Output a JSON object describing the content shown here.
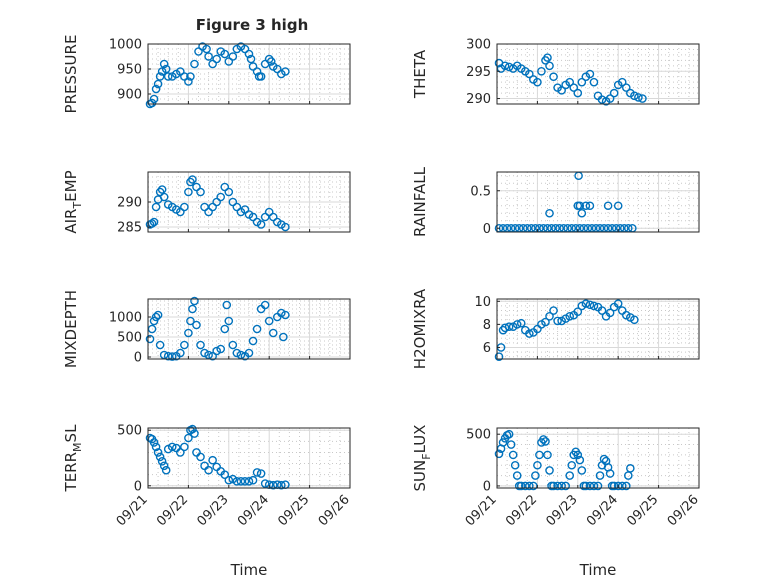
{
  "figure": {
    "title": "Figure 3 high",
    "marker_color": "#0072bd",
    "grid": "on (major and minor)",
    "marker": "open circle",
    "x_tick_labels": [
      "09/21",
      "09/22",
      "09/23",
      "09/24",
      "09/25",
      "09/26"
    ],
    "x_tick_label_rotation_deg": 45,
    "xlabel": "Time"
  },
  "chart_data": [
    {
      "type": "scatter",
      "title": "Figure 3 high",
      "xlabel": "",
      "ylabel": "PRESSURE",
      "xlim": [
        0,
        5
      ],
      "ylim": [
        880,
        1000
      ],
      "yticks": [
        900,
        950,
        1000
      ],
      "points": [
        [
          0.05,
          880
        ],
        [
          0.1,
          882
        ],
        [
          0.15,
          890
        ],
        [
          0.2,
          910
        ],
        [
          0.25,
          920
        ],
        [
          0.3,
          935
        ],
        [
          0.35,
          945
        ],
        [
          0.4,
          960
        ],
        [
          0.45,
          950
        ],
        [
          0.5,
          935
        ],
        [
          0.6,
          935
        ],
        [
          0.7,
          940
        ],
        [
          0.8,
          945
        ],
        [
          0.9,
          935
        ],
        [
          1.0,
          925
        ],
        [
          1.05,
          935
        ],
        [
          1.15,
          960
        ],
        [
          1.25,
          985
        ],
        [
          1.35,
          995
        ],
        [
          1.45,
          990
        ],
        [
          1.5,
          975
        ],
        [
          1.6,
          960
        ],
        [
          1.7,
          970
        ],
        [
          1.8,
          985
        ],
        [
          1.9,
          980
        ],
        [
          2.0,
          965
        ],
        [
          2.1,
          975
        ],
        [
          2.2,
          990
        ],
        [
          2.3,
          995
        ],
        [
          2.4,
          990
        ],
        [
          2.5,
          980
        ],
        [
          2.55,
          970
        ],
        [
          2.6,
          955
        ],
        [
          2.7,
          945
        ],
        [
          2.75,
          935
        ],
        [
          2.8,
          935
        ],
        [
          2.9,
          960
        ],
        [
          3.0,
          970
        ],
        [
          3.05,
          965
        ],
        [
          3.1,
          955
        ],
        [
          3.2,
          950
        ],
        [
          3.3,
          940
        ],
        [
          3.4,
          945
        ]
      ]
    },
    {
      "type": "scatter",
      "title": "",
      "xlabel": "",
      "ylabel": "THETA",
      "xlim": [
        0,
        5
      ],
      "ylim": [
        289,
        300
      ],
      "yticks": [
        290,
        295,
        300
      ],
      "points": [
        [
          0.05,
          296.5
        ],
        [
          0.1,
          295.5
        ],
        [
          0.2,
          296
        ],
        [
          0.3,
          295.8
        ],
        [
          0.4,
          295.5
        ],
        [
          0.5,
          296
        ],
        [
          0.6,
          295.5
        ],
        [
          0.7,
          295
        ],
        [
          0.8,
          294.5
        ],
        [
          0.9,
          293.5
        ],
        [
          1.0,
          293
        ],
        [
          1.1,
          295
        ],
        [
          1.2,
          297
        ],
        [
          1.25,
          297.5
        ],
        [
          1.3,
          296
        ],
        [
          1.4,
          294
        ],
        [
          1.5,
          292
        ],
        [
          1.6,
          291.5
        ],
        [
          1.7,
          292.5
        ],
        [
          1.8,
          293
        ],
        [
          1.9,
          292
        ],
        [
          2.0,
          291
        ],
        [
          2.1,
          293
        ],
        [
          2.2,
          294
        ],
        [
          2.3,
          294.5
        ],
        [
          2.4,
          293
        ],
        [
          2.5,
          290.5
        ],
        [
          2.6,
          289.8
        ],
        [
          2.7,
          289.5
        ],
        [
          2.8,
          290
        ],
        [
          2.9,
          291
        ],
        [
          3.0,
          292.5
        ],
        [
          3.1,
          293
        ],
        [
          3.2,
          292
        ],
        [
          3.3,
          291
        ],
        [
          3.4,
          290.5
        ],
        [
          3.5,
          290.2
        ],
        [
          3.6,
          290
        ]
      ]
    },
    {
      "type": "scatter",
      "title": "",
      "xlabel": "",
      "ylabel": "AIR_TEMP",
      "xlim": [
        0,
        5
      ],
      "ylim": [
        284,
        296
      ],
      "yticks": [
        285,
        290
      ],
      "points": [
        [
          0.05,
          285.5
        ],
        [
          0.1,
          285.7
        ],
        [
          0.15,
          286
        ],
        [
          0.2,
          289
        ],
        [
          0.25,
          290.5
        ],
        [
          0.3,
          292
        ],
        [
          0.35,
          292.5
        ],
        [
          0.4,
          291
        ],
        [
          0.5,
          289.5
        ],
        [
          0.6,
          289
        ],
        [
          0.7,
          288.5
        ],
        [
          0.8,
          288
        ],
        [
          0.9,
          289
        ],
        [
          1.0,
          292
        ],
        [
          1.05,
          294
        ],
        [
          1.1,
          294.5
        ],
        [
          1.2,
          293
        ],
        [
          1.3,
          292
        ],
        [
          1.4,
          289
        ],
        [
          1.5,
          288
        ],
        [
          1.6,
          289
        ],
        [
          1.7,
          290
        ],
        [
          1.8,
          291
        ],
        [
          1.9,
          293
        ],
        [
          2.0,
          292
        ],
        [
          2.1,
          290
        ],
        [
          2.2,
          289
        ],
        [
          2.3,
          288
        ],
        [
          2.4,
          288.5
        ],
        [
          2.5,
          287.5
        ],
        [
          2.6,
          287
        ],
        [
          2.7,
          286
        ],
        [
          2.8,
          285.5
        ],
        [
          2.9,
          287
        ],
        [
          3.0,
          288
        ],
        [
          3.1,
          287
        ],
        [
          3.2,
          286
        ],
        [
          3.3,
          285.5
        ],
        [
          3.4,
          285
        ]
      ]
    },
    {
      "type": "scatter",
      "title": "",
      "xlabel": "",
      "ylabel": "RAINFALL",
      "xlim": [
        0,
        5
      ],
      "ylim": [
        -0.05,
        0.75
      ],
      "yticks": [
        0,
        0.5
      ],
      "points": [
        [
          0.05,
          0
        ],
        [
          0.15,
          0
        ],
        [
          0.25,
          0
        ],
        [
          0.35,
          0
        ],
        [
          0.45,
          0
        ],
        [
          0.55,
          0
        ],
        [
          0.65,
          0
        ],
        [
          0.75,
          0
        ],
        [
          0.85,
          0
        ],
        [
          0.95,
          0
        ],
        [
          1.05,
          0
        ],
        [
          1.15,
          0
        ],
        [
          1.25,
          0
        ],
        [
          1.35,
          0
        ],
        [
          1.45,
          0
        ],
        [
          1.55,
          0
        ],
        [
          1.65,
          0
        ],
        [
          1.75,
          0
        ],
        [
          1.85,
          0
        ],
        [
          1.95,
          0
        ],
        [
          2.05,
          0
        ],
        [
          2.15,
          0
        ],
        [
          2.25,
          0
        ],
        [
          2.35,
          0
        ],
        [
          2.45,
          0
        ],
        [
          2.55,
          0
        ],
        [
          2.65,
          0
        ],
        [
          2.75,
          0
        ],
        [
          2.85,
          0
        ],
        [
          2.95,
          0
        ],
        [
          3.05,
          0
        ],
        [
          3.15,
          0
        ],
        [
          3.25,
          0
        ],
        [
          3.35,
          0
        ],
        [
          1.3,
          0.2
        ],
        [
          2.0,
          0.3
        ],
        [
          2.02,
          0.7
        ],
        [
          2.05,
          0.3
        ],
        [
          2.1,
          0.2
        ],
        [
          2.2,
          0.3
        ],
        [
          2.3,
          0.3
        ],
        [
          2.75,
          0.3
        ],
        [
          3.0,
          0.3
        ]
      ]
    },
    {
      "type": "scatter",
      "title": "",
      "xlabel": "",
      "ylabel": "MIXDEPTH",
      "xlim": [
        0,
        5
      ],
      "ylim": [
        -50,
        1450
      ],
      "yticks": [
        0,
        500,
        1000
      ],
      "points": [
        [
          0.05,
          450
        ],
        [
          0.1,
          700
        ],
        [
          0.15,
          900
        ],
        [
          0.2,
          1000
        ],
        [
          0.25,
          1050
        ],
        [
          0.3,
          300
        ],
        [
          0.4,
          50
        ],
        [
          0.5,
          20
        ],
        [
          0.6,
          10
        ],
        [
          0.7,
          20
        ],
        [
          0.8,
          100
        ],
        [
          0.9,
          300
        ],
        [
          1.0,
          600
        ],
        [
          1.05,
          900
        ],
        [
          1.1,
          1200
        ],
        [
          1.15,
          1400
        ],
        [
          1.2,
          800
        ],
        [
          1.3,
          300
        ],
        [
          1.4,
          100
        ],
        [
          1.5,
          50
        ],
        [
          1.6,
          20
        ],
        [
          1.7,
          150
        ],
        [
          1.8,
          200
        ],
        [
          1.9,
          700
        ],
        [
          1.95,
          1300
        ],
        [
          2.0,
          900
        ],
        [
          2.1,
          300
        ],
        [
          2.2,
          100
        ],
        [
          2.3,
          50
        ],
        [
          2.4,
          20
        ],
        [
          2.5,
          100
        ],
        [
          2.6,
          400
        ],
        [
          2.7,
          700
        ],
        [
          2.8,
          1200
        ],
        [
          2.9,
          1300
        ],
        [
          3.0,
          900
        ],
        [
          3.1,
          600
        ],
        [
          3.2,
          1000
        ],
        [
          3.3,
          1100
        ],
        [
          3.35,
          500
        ],
        [
          3.4,
          1050
        ]
      ]
    },
    {
      "type": "scatter",
      "title": "",
      "xlabel": "",
      "ylabel": "H2OMIXRA",
      "xlim": [
        0,
        5
      ],
      "ylim": [
        5,
        10.2
      ],
      "yticks": [
        6,
        8,
        10
      ],
      "points": [
        [
          0.05,
          5.2
        ],
        [
          0.1,
          6
        ],
        [
          0.15,
          7.5
        ],
        [
          0.2,
          7.7
        ],
        [
          0.3,
          7.8
        ],
        [
          0.4,
          7.8
        ],
        [
          0.5,
          8
        ],
        [
          0.6,
          8.1
        ],
        [
          0.7,
          7.5
        ],
        [
          0.8,
          7.2
        ],
        [
          0.9,
          7.3
        ],
        [
          1.0,
          7.6
        ],
        [
          1.1,
          8
        ],
        [
          1.2,
          8.2
        ],
        [
          1.3,
          8.7
        ],
        [
          1.4,
          9.2
        ],
        [
          1.5,
          8.3
        ],
        [
          1.6,
          8.3
        ],
        [
          1.7,
          8.5
        ],
        [
          1.8,
          8.7
        ],
        [
          1.9,
          8.8
        ],
        [
          2.0,
          9.1
        ],
        [
          2.1,
          9.6
        ],
        [
          2.2,
          9.8
        ],
        [
          2.3,
          9.7
        ],
        [
          2.4,
          9.6
        ],
        [
          2.5,
          9.5
        ],
        [
          2.6,
          9.2
        ],
        [
          2.7,
          8.7
        ],
        [
          2.8,
          9.0
        ],
        [
          2.9,
          9.5
        ],
        [
          3.0,
          9.8
        ],
        [
          3.1,
          9.2
        ],
        [
          3.2,
          8.8
        ],
        [
          3.3,
          8.6
        ],
        [
          3.4,
          8.4
        ]
      ]
    },
    {
      "type": "scatter",
      "title": "",
      "xlabel": "",
      "ylabel": "TERR_MSL",
      "xlim": [
        0,
        5
      ],
      "ylim": [
        -20,
        520
      ],
      "yticks": [
        0,
        500
      ],
      "points": [
        [
          0.05,
          430
        ],
        [
          0.1,
          420
        ],
        [
          0.15,
          390
        ],
        [
          0.2,
          350
        ],
        [
          0.25,
          300
        ],
        [
          0.3,
          260
        ],
        [
          0.35,
          220
        ],
        [
          0.4,
          180
        ],
        [
          0.45,
          140
        ],
        [
          0.5,
          330
        ],
        [
          0.6,
          350
        ],
        [
          0.7,
          340
        ],
        [
          0.8,
          300
        ],
        [
          0.9,
          350
        ],
        [
          1.0,
          430
        ],
        [
          1.05,
          500
        ],
        [
          1.1,
          510
        ],
        [
          1.15,
          470
        ],
        [
          1.2,
          300
        ],
        [
          1.3,
          260
        ],
        [
          1.4,
          180
        ],
        [
          1.5,
          140
        ],
        [
          1.6,
          230
        ],
        [
          1.7,
          170
        ],
        [
          1.8,
          130
        ],
        [
          1.9,
          100
        ],
        [
          2.0,
          50
        ],
        [
          2.1,
          60
        ],
        [
          2.2,
          40
        ],
        [
          2.3,
          40
        ],
        [
          2.4,
          40
        ],
        [
          2.5,
          40
        ],
        [
          2.6,
          50
        ],
        [
          2.7,
          120
        ],
        [
          2.8,
          110
        ],
        [
          2.9,
          20
        ],
        [
          3.0,
          10
        ],
        [
          3.1,
          5
        ],
        [
          3.2,
          10
        ],
        [
          3.3,
          5
        ],
        [
          3.4,
          10
        ]
      ]
    },
    {
      "type": "scatter",
      "title": "",
      "xlabel": "",
      "ylabel": "SUN_FLUX",
      "xlim": [
        0,
        5
      ],
      "ylim": [
        -20,
        560
      ],
      "yticks": [
        0,
        500
      ],
      "points": [
        [
          0.05,
          310
        ],
        [
          0.1,
          360
        ],
        [
          0.15,
          420
        ],
        [
          0.2,
          460
        ],
        [
          0.25,
          490
        ],
        [
          0.3,
          500
        ],
        [
          0.35,
          400
        ],
        [
          0.4,
          300
        ],
        [
          0.45,
          200
        ],
        [
          0.5,
          100
        ],
        [
          0.55,
          0
        ],
        [
          0.6,
          0
        ],
        [
          0.7,
          0
        ],
        [
          0.8,
          0
        ],
        [
          0.9,
          0
        ],
        [
          0.95,
          100
        ],
        [
          1.0,
          200
        ],
        [
          1.05,
          300
        ],
        [
          1.1,
          420
        ],
        [
          1.15,
          450
        ],
        [
          1.2,
          430
        ],
        [
          1.25,
          300
        ],
        [
          1.3,
          150
        ],
        [
          1.35,
          0
        ],
        [
          1.4,
          0
        ],
        [
          1.5,
          0
        ],
        [
          1.6,
          0
        ],
        [
          1.7,
          0
        ],
        [
          1.8,
          100
        ],
        [
          1.85,
          200
        ],
        [
          1.9,
          300
        ],
        [
          1.95,
          330
        ],
        [
          2.0,
          300
        ],
        [
          2.05,
          250
        ],
        [
          2.1,
          150
        ],
        [
          2.15,
          0
        ],
        [
          2.2,
          0
        ],
        [
          2.3,
          0
        ],
        [
          2.4,
          0
        ],
        [
          2.5,
          0
        ],
        [
          2.55,
          100
        ],
        [
          2.6,
          200
        ],
        [
          2.65,
          260
        ],
        [
          2.7,
          240
        ],
        [
          2.75,
          180
        ],
        [
          2.8,
          120
        ],
        [
          2.85,
          0
        ],
        [
          2.9,
          0
        ],
        [
          3.0,
          0
        ],
        [
          3.1,
          0
        ],
        [
          3.2,
          0
        ],
        [
          3.25,
          100
        ],
        [
          3.3,
          170
        ]
      ]
    }
  ]
}
